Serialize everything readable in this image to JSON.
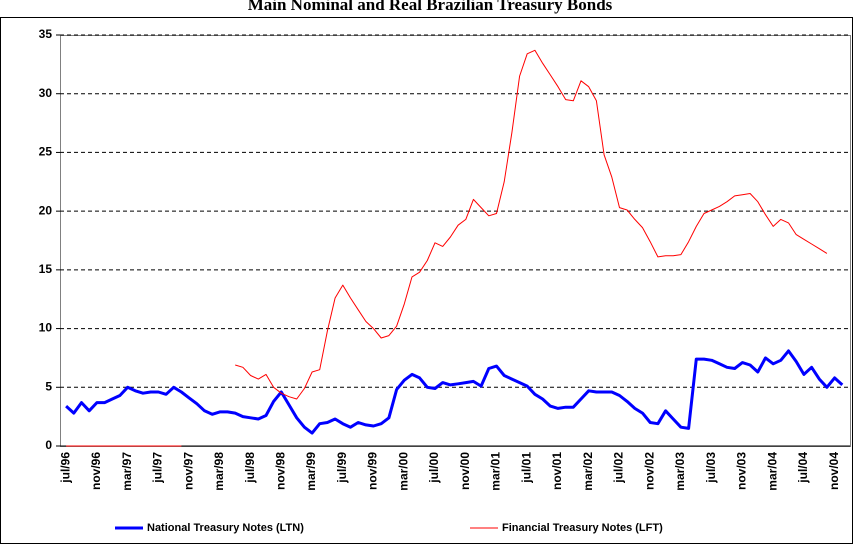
{
  "chart_data": {
    "type": "line",
    "title": "Main Nominal and Real Brazilian Treasury Bonds",
    "categories": [
      "jul/96",
      null,
      null,
      null,
      "nov/96",
      null,
      null,
      null,
      "mar/97",
      null,
      null,
      null,
      "jul/97",
      null,
      null,
      null,
      "nov/97",
      null,
      null,
      null,
      "mar/98",
      null,
      null,
      null,
      "jul/98",
      null,
      null,
      null,
      "nov/98",
      null,
      null,
      null,
      "mar/99",
      null,
      null,
      null,
      "jul/99",
      null,
      null,
      null,
      "nov/99",
      null,
      null,
      null,
      "mar/00",
      null,
      null,
      null,
      "jul/00",
      null,
      null,
      null,
      "nov/00",
      null,
      null,
      null,
      "mar/01",
      null,
      null,
      null,
      "jul/01",
      null,
      null,
      null,
      "nov/01",
      null,
      null,
      null,
      "mar/02",
      null,
      null,
      null,
      "jul/02",
      null,
      null,
      null,
      "nov/02",
      null,
      null,
      null,
      "mar/03",
      null,
      null,
      null,
      "jul/03",
      null,
      null,
      null,
      "nov/03",
      null,
      null,
      null,
      "mar/04",
      null,
      null,
      null,
      "jul/04",
      null,
      null,
      null,
      "nov/04",
      null
    ],
    "series": [
      {
        "name": "National Treasury Notes (LTN)",
        "color": "#0000ff",
        "width": 3,
        "values": [
          3.4,
          2.8,
          3.7,
          3.0,
          3.7,
          3.7,
          4.0,
          4.3,
          5.0,
          4.7,
          4.5,
          4.6,
          4.6,
          4.4,
          5.0,
          4.6,
          4.1,
          3.6,
          3.0,
          2.7,
          2.9,
          2.9,
          2.8,
          2.5,
          2.4,
          2.3,
          2.6,
          3.8,
          4.6,
          3.5,
          2.4,
          1.6,
          1.1,
          1.9,
          2.0,
          2.3,
          1.9,
          1.6,
          2.0,
          1.8,
          1.7,
          1.9,
          2.4,
          4.8,
          5.6,
          6.1,
          5.8,
          5.0,
          4.9,
          5.4,
          5.2,
          5.3,
          5.4,
          5.5,
          5.1,
          6.6,
          6.8,
          6.0,
          5.7,
          5.4,
          5.1,
          4.4,
          4.0,
          3.4,
          3.2,
          3.3,
          3.3,
          4.0,
          4.7,
          4.6,
          4.6,
          4.6,
          4.3,
          3.8,
          3.2,
          2.8,
          2.0,
          1.9,
          3.0,
          2.3,
          1.6,
          1.5,
          7.4,
          7.4,
          7.3,
          7.0,
          6.7,
          6.6,
          7.1,
          6.9,
          6.3,
          7.5,
          7.0,
          7.3,
          8.1,
          7.2,
          6.1,
          6.7,
          5.7,
          5.0,
          5.8,
          5.2
        ]
      },
      {
        "name": "Financial Treasury Notes (LFT)",
        "color": "#ff0000",
        "width": 1,
        "values": [
          0,
          0,
          0,
          0,
          0,
          0,
          0,
          0,
          0,
          0,
          0,
          0,
          0,
          0,
          0,
          0,
          null,
          null,
          null,
          null,
          null,
          null,
          6.9,
          6.7,
          6.0,
          5.7,
          6.1,
          5.0,
          4.5,
          4.2,
          4.0,
          4.9,
          6.3,
          6.5,
          9.8,
          12.6,
          13.7,
          12.6,
          11.6,
          10.6,
          10.0,
          9.2,
          9.4,
          10.2,
          12.1,
          14.4,
          14.8,
          15.8,
          17.3,
          17.0,
          17.8,
          18.8,
          19.3,
          21.0,
          20.3,
          19.6,
          19.8,
          22.5,
          26.7,
          31.5,
          33.4,
          33.7,
          32.6,
          31.6,
          30.6,
          29.5,
          29.4,
          31.1,
          30.6,
          29.4,
          24.8,
          22.9,
          20.3,
          20.1,
          19.3,
          18.6,
          17.4,
          16.1,
          16.2,
          16.2,
          16.3,
          17.4,
          18.7,
          19.8,
          20.1,
          20.4,
          20.8,
          21.3,
          21.4,
          21.5,
          20.8,
          19.7,
          18.7,
          19.3,
          19.0,
          18.0,
          17.6,
          17.2,
          16.8,
          16.4,
          null,
          null
        ]
      }
    ],
    "ylim": [
      0,
      35
    ],
    "yticks": [
      0,
      5,
      10,
      15,
      20,
      25,
      30,
      35
    ],
    "grid": true
  }
}
